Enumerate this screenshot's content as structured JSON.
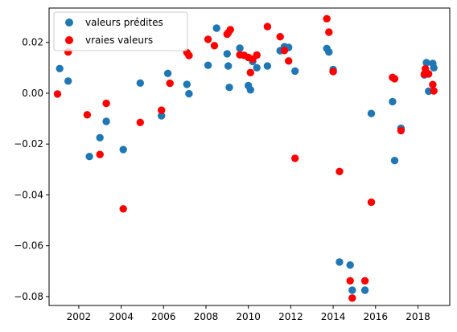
{
  "chart_data": {
    "type": "scatter",
    "title": "",
    "xlabel": "",
    "ylabel": "",
    "xlim": [
      2000.6,
      2019.5
    ],
    "ylim": [
      -0.0835,
      0.0335
    ],
    "grid": false,
    "legend_position": "top-left",
    "x_ticks": [
      {
        "value": 2002,
        "label": "2002"
      },
      {
        "value": 2004,
        "label": "2004"
      },
      {
        "value": 2006,
        "label": "2006"
      },
      {
        "value": 2008,
        "label": "2008"
      },
      {
        "value": 2010,
        "label": "2010"
      },
      {
        "value": 2012,
        "label": "2012"
      },
      {
        "value": 2014,
        "label": "2014"
      },
      {
        "value": 2016,
        "label": "2016"
      },
      {
        "value": 2018,
        "label": "2018"
      }
    ],
    "y_ticks": [
      {
        "value": 0.02,
        "label": "0.02"
      },
      {
        "value": 0.0,
        "label": "0.00"
      },
      {
        "value": -0.02,
        "label": "−0.02"
      },
      {
        "value": -0.04,
        "label": "−0.04"
      },
      {
        "value": -0.06,
        "label": "−0.06"
      },
      {
        "value": -0.08,
        "label": "−0.08"
      }
    ],
    "series": [
      {
        "name": "valeurs prédites",
        "color": "#1f77b4",
        "points": [
          [
            2001.1,
            0.0097
          ],
          [
            2001.5,
            0.0048
          ],
          [
            2002.5,
            -0.0249
          ],
          [
            2003.0,
            -0.0175
          ],
          [
            2003.3,
            -0.0111
          ],
          [
            2004.1,
            -0.0222
          ],
          [
            2004.9,
            0.004
          ],
          [
            2005.9,
            -0.0089
          ],
          [
            2006.2,
            0.0078
          ],
          [
            2007.1,
            0.0035
          ],
          [
            2007.2,
            -0.0002
          ],
          [
            2008.1,
            0.011
          ],
          [
            2008.5,
            0.0256
          ],
          [
            2009.0,
            0.0155
          ],
          [
            2009.05,
            0.0107
          ],
          [
            2009.1,
            0.0023
          ],
          [
            2009.6,
            0.0177
          ],
          [
            2010.0,
            0.003
          ],
          [
            2010.1,
            0.0013
          ],
          [
            2010.2,
            0.0125
          ],
          [
            2010.4,
            0.01
          ],
          [
            2010.9,
            0.0107
          ],
          [
            2011.5,
            0.0167
          ],
          [
            2011.7,
            0.0183
          ],
          [
            2011.9,
            0.018
          ],
          [
            2012.2,
            0.0087
          ],
          [
            2013.7,
            0.0176
          ],
          [
            2013.8,
            0.0162
          ],
          [
            2014.0,
            0.0093
          ],
          [
            2014.3,
            -0.0664
          ],
          [
            2014.8,
            -0.0676
          ],
          [
            2014.9,
            -0.0775
          ],
          [
            2015.5,
            -0.0775
          ],
          [
            2015.8,
            -0.008
          ],
          [
            2016.8,
            -0.0033
          ],
          [
            2016.9,
            -0.0265
          ],
          [
            2017.2,
            -0.0138
          ],
          [
            2018.3,
            0.0072
          ],
          [
            2018.4,
            0.012
          ],
          [
            2018.5,
            0.0008
          ],
          [
            2018.7,
            0.0117
          ],
          [
            2018.75,
            0.01
          ]
        ]
      },
      {
        "name": "vraies valeurs",
        "color": "#ff0000",
        "points": [
          [
            2001.0,
            -0.0003
          ],
          [
            2001.5,
            0.0162
          ],
          [
            2002.4,
            -0.0085
          ],
          [
            2003.0,
            -0.0241
          ],
          [
            2003.3,
            -0.004
          ],
          [
            2004.1,
            -0.0455
          ],
          [
            2004.9,
            -0.0115
          ],
          [
            2005.9,
            -0.0067
          ],
          [
            2006.3,
            0.0039
          ],
          [
            2007.1,
            0.016
          ],
          [
            2007.2,
            0.0148
          ],
          [
            2008.1,
            0.0212
          ],
          [
            2008.4,
            0.0187
          ],
          [
            2009.0,
            0.0232
          ],
          [
            2009.05,
            0.0238
          ],
          [
            2009.15,
            0.025
          ],
          [
            2009.6,
            0.0151
          ],
          [
            2009.8,
            0.0149
          ],
          [
            2010.0,
            0.0141
          ],
          [
            2010.1,
            0.0081
          ],
          [
            2010.2,
            0.0134
          ],
          [
            2010.4,
            0.015
          ],
          [
            2010.9,
            0.0262
          ],
          [
            2011.5,
            0.0222
          ],
          [
            2011.7,
            0.0168
          ],
          [
            2011.9,
            0.0127
          ],
          [
            2012.2,
            -0.0256
          ],
          [
            2013.7,
            0.0293
          ],
          [
            2013.8,
            0.024
          ],
          [
            2014.0,
            0.0085
          ],
          [
            2014.3,
            -0.0308
          ],
          [
            2014.8,
            -0.0738
          ],
          [
            2014.9,
            -0.0806
          ],
          [
            2015.5,
            -0.0738
          ],
          [
            2015.8,
            -0.0429
          ],
          [
            2016.8,
            0.0062
          ],
          [
            2016.9,
            0.0057
          ],
          [
            2017.2,
            -0.0147
          ],
          [
            2018.3,
            0.0075
          ],
          [
            2018.35,
            0.0096
          ],
          [
            2018.5,
            0.0076
          ],
          [
            2018.7,
            0.0034
          ],
          [
            2018.75,
            0.0009
          ]
        ]
      }
    ]
  }
}
